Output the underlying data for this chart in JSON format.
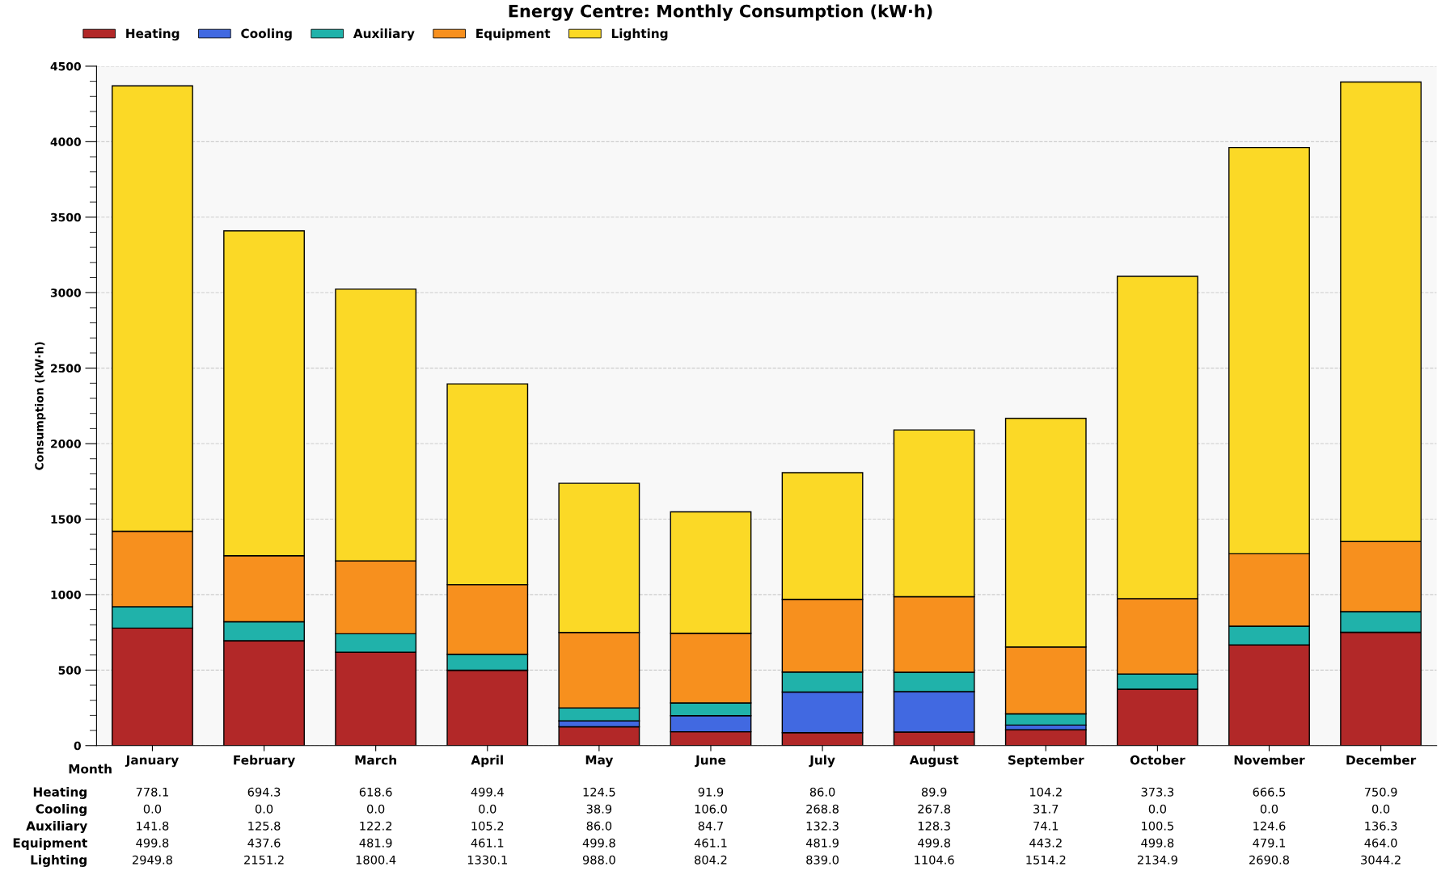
{
  "chart_data": {
    "type": "bar",
    "stacked": true,
    "title": "Energy Centre: Monthly Consumption (kW·h)",
    "xlabel": "Month",
    "ylabel": "Consumption (kW·h)",
    "categories": [
      "January",
      "February",
      "March",
      "April",
      "May",
      "June",
      "July",
      "August",
      "September",
      "October",
      "November",
      "December"
    ],
    "series": [
      {
        "name": "Heating",
        "color": "#b22828",
        "values": [
          778.1,
          694.3,
          618.6,
          499.4,
          124.5,
          91.9,
          86.0,
          89.9,
          104.2,
          373.3,
          666.5,
          750.9
        ],
        "value_labels": [
          "778.1",
          "694.3",
          "618.6",
          "499.4",
          "124.5",
          "91.9",
          "86.0",
          "89.9",
          "104.2",
          "373.3",
          "666.5",
          "750.9"
        ]
      },
      {
        "name": "Cooling",
        "color": "#4169e1",
        "values": [
          0.0,
          0.0,
          0.0,
          0.0,
          38.9,
          106.0,
          268.8,
          267.8,
          31.7,
          0.0,
          0.0,
          0.0
        ],
        "value_labels": [
          "0.0",
          "0.0",
          "0.0",
          "0.0",
          "38.9",
          "106.0",
          "268.8",
          "267.8",
          "31.7",
          "0.0",
          "0.0",
          "0.0"
        ]
      },
      {
        "name": "Auxiliary",
        "color": "#20b2aa",
        "values": [
          141.8,
          125.8,
          122.2,
          105.2,
          86.0,
          84.7,
          132.3,
          128.3,
          74.1,
          100.5,
          124.6,
          136.3
        ],
        "value_labels": [
          "141.8",
          "125.8",
          "122.2",
          "105.2",
          "86.0",
          "84.7",
          "132.3",
          "128.3",
          "74.1",
          "100.5",
          "124.6",
          "136.3"
        ]
      },
      {
        "name": "Equipment",
        "color": "#f7901e",
        "values": [
          499.8,
          437.6,
          481.9,
          461.1,
          499.8,
          461.1,
          481.9,
          499.8,
          443.2,
          499.8,
          479.1,
          464.0
        ],
        "value_labels": [
          "499.8",
          "437.6",
          "481.9",
          "461.1",
          "499.8",
          "461.1",
          "481.9",
          "499.8",
          "443.2",
          "499.8",
          "479.1",
          "464.0"
        ]
      },
      {
        "name": "Lighting",
        "color": "#fbd926",
        "values": [
          2949.8,
          2151.2,
          1800.4,
          1330.1,
          988.0,
          804.2,
          839.0,
          1104.6,
          1514.2,
          2134.9,
          2690.8,
          3044.2
        ],
        "value_labels": [
          "2949.8",
          "2151.2",
          "1800.4",
          "1330.1",
          "988.0",
          "804.2",
          "839.0",
          "1104.6",
          "1514.2",
          "2134.9",
          "2690.8",
          "3044.2"
        ]
      }
    ],
    "ylim": [
      0,
      4500
    ],
    "yticks": [
      0,
      500,
      1000,
      1500,
      2000,
      2500,
      3000,
      3500,
      4000,
      4500
    ],
    "grid": "y",
    "legend": "top left"
  }
}
